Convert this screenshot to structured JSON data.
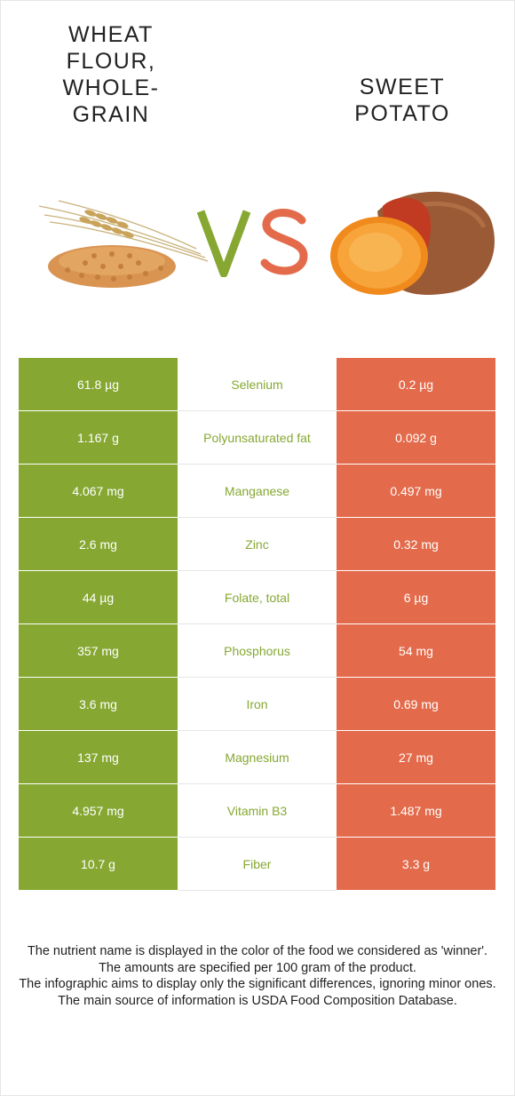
{
  "foods": {
    "left": {
      "name": "WHEAT FLOUR, WHOLE-GRAIN",
      "color": "#86a833"
    },
    "right": {
      "name": "SWEET POTATO",
      "color": "#e36b4c"
    }
  },
  "vs": {
    "v": "V",
    "s": "S"
  },
  "images": {
    "left": "wheat-grain-icon",
    "right": "sweet-potato-icon"
  },
  "rows": [
    {
      "left": "61.8 µg",
      "nutrient": "Selenium",
      "right": "0.2 µg"
    },
    {
      "left": "1.167 g",
      "nutrient": "Polyunsaturated fat",
      "right": "0.092 g"
    },
    {
      "left": "4.067 mg",
      "nutrient": "Manganese",
      "right": "0.497 mg"
    },
    {
      "left": "2.6 mg",
      "nutrient": "Zinc",
      "right": "0.32 mg"
    },
    {
      "left": "44 µg",
      "nutrient": "Folate, total",
      "right": "6 µg"
    },
    {
      "left": "357 mg",
      "nutrient": "Phosphorus",
      "right": "54 mg"
    },
    {
      "left": "3.6 mg",
      "nutrient": "Iron",
      "right": "0.69 mg"
    },
    {
      "left": "137 mg",
      "nutrient": "Magnesium",
      "right": "27 mg"
    },
    {
      "left": "4.957 mg",
      "nutrient": "Vitamin B3",
      "right": "1.487 mg"
    },
    {
      "left": "10.7 g",
      "nutrient": "Fiber",
      "right": "3.3 g"
    }
  ],
  "notes": [
    "The nutrient name is displayed in the color of the food we considered as 'winner'.",
    "The amounts are specified per 100 gram of the product.",
    "The infographic aims to display only the significant differences, ignoring minor ones.",
    "The main source of information is USDA Food Composition Database."
  ]
}
